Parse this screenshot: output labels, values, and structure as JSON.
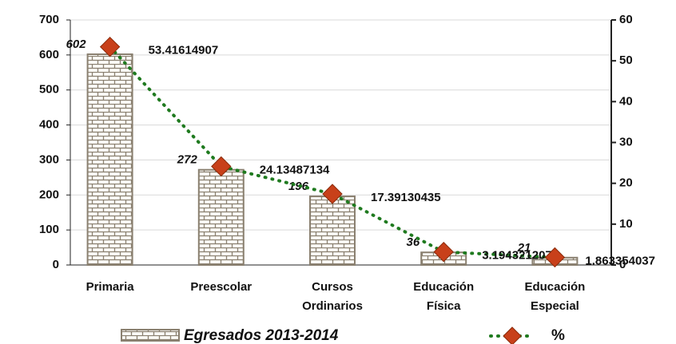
{
  "chart_data": {
    "type": "bar_line",
    "categories": [
      "Primaria",
      "Preescolar",
      "Cursos Ordinarios",
      "Educación Física",
      "Educación Especial"
    ],
    "series": [
      {
        "name": "Egresados 2013-2014",
        "type": "bar",
        "color": "#8a8070",
        "values": [
          602,
          272,
          196,
          36,
          21
        ]
      },
      {
        "name": "%",
        "type": "line",
        "axis": "y2",
        "color": "#1f7a1f",
        "marker_color": "#c8401a",
        "values": [
          53.41614907,
          24.13487134,
          17.39130435,
          3.194321207,
          1.863354037
        ]
      }
    ],
    "ylim": [
      0,
      700
    ],
    "yticks": [
      0,
      100,
      200,
      300,
      400,
      500,
      600,
      700
    ],
    "y2lim": [
      0,
      60
    ],
    "y2ticks": [
      0,
      10,
      20,
      30,
      40,
      50,
      60
    ],
    "grid": true
  }
}
